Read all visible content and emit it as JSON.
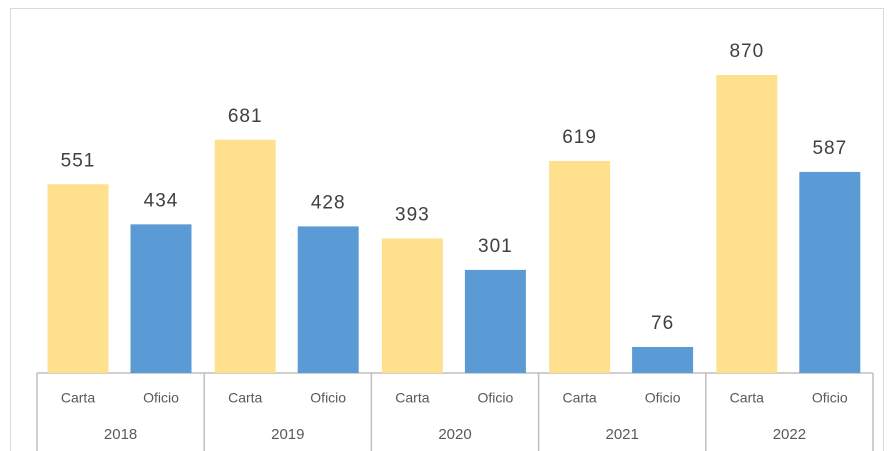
{
  "chart_data": {
    "type": "bar",
    "categories": [
      "2018",
      "2019",
      "2020",
      "2021",
      "2022"
    ],
    "series": [
      {
        "name": "Carta",
        "color": "#fee08f",
        "values": [
          551,
          681,
          393,
          619,
          870
        ]
      },
      {
        "name": "Oficio",
        "color": "#5b9bd5",
        "values": [
          434,
          428,
          301,
          76,
          587
        ]
      }
    ]
  }
}
